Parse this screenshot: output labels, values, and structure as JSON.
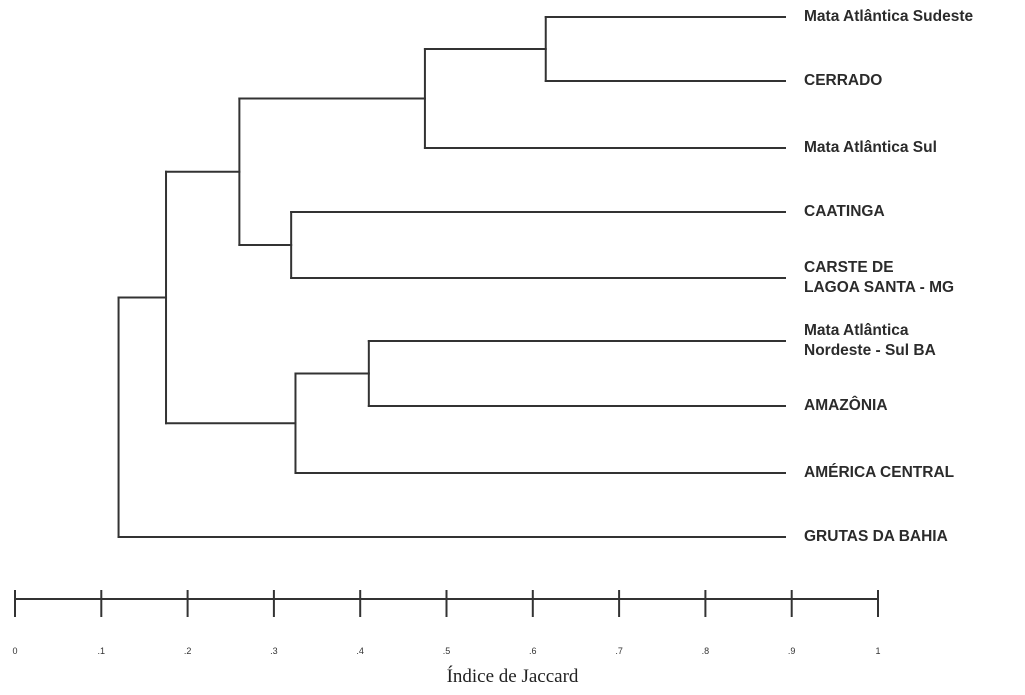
{
  "dendrogram": {
    "leaves": [
      "Mata Atlântica Sudeste",
      "CERRADO",
      "Mata Atlântica Sul",
      "CAATINGA",
      "CARSTE DE LAGOA SANTA - MG",
      "Mata Atlântica Nordeste - Sul BA",
      "AMAZÔNIA",
      "AMÉRICA CENTRAL",
      "GRUTAS DA BAHIA"
    ],
    "leaf_label_lines": [
      [
        "Mata Atlântica Sudeste"
      ],
      [
        "CERRADO"
      ],
      [
        "Mata Atlântica Sul"
      ],
      [
        "CAATINGA"
      ],
      [
        "CARSTE DE",
        "LAGOA SANTA - MG"
      ],
      [
        "Mata Atlântica",
        "Nordeste - Sul BA"
      ],
      [
        "AMAZÔNIA"
      ],
      [
        "AMÉRICA CENTRAL"
      ],
      [
        "GRUTAS DA BAHIA"
      ]
    ],
    "merges": [
      {
        "a": "leaf:0",
        "b": "leaf:1",
        "similarity": 0.615
      },
      {
        "a": "merge:0",
        "b": "leaf:2",
        "similarity": 0.475
      },
      {
        "a": "leaf:3",
        "b": "leaf:4",
        "similarity": 0.32
      },
      {
        "a": "merge:1",
        "b": "merge:2",
        "similarity": 0.26
      },
      {
        "a": "leaf:5",
        "b": "leaf:6",
        "similarity": 0.41
      },
      {
        "a": "merge:4",
        "b": "leaf:7",
        "similarity": 0.325
      },
      {
        "a": "merge:3",
        "b": "merge:5",
        "similarity": 0.175
      },
      {
        "a": "merge:6",
        "b": "leaf:8",
        "similarity": 0.12
      }
    ],
    "line_color": "#333333"
  },
  "axis": {
    "title": "Índice de Jaccard",
    "range": [
      0,
      1
    ],
    "ticks": [
      {
        "value": 0,
        "label": "0"
      },
      {
        "value": 0.1,
        "label": ".1"
      },
      {
        "value": 0.2,
        "label": ".2"
      },
      {
        "value": 0.3,
        "label": ".3"
      },
      {
        "value": 0.4,
        "label": ".4"
      },
      {
        "value": 0.5,
        "label": ".5"
      },
      {
        "value": 0.6,
        "label": ".6"
      },
      {
        "value": 0.7,
        "label": ".7"
      },
      {
        "value": 0.8,
        "label": ".8"
      },
      {
        "value": 0.9,
        "label": ".9"
      },
      {
        "value": 1,
        "label": "1"
      }
    ]
  }
}
